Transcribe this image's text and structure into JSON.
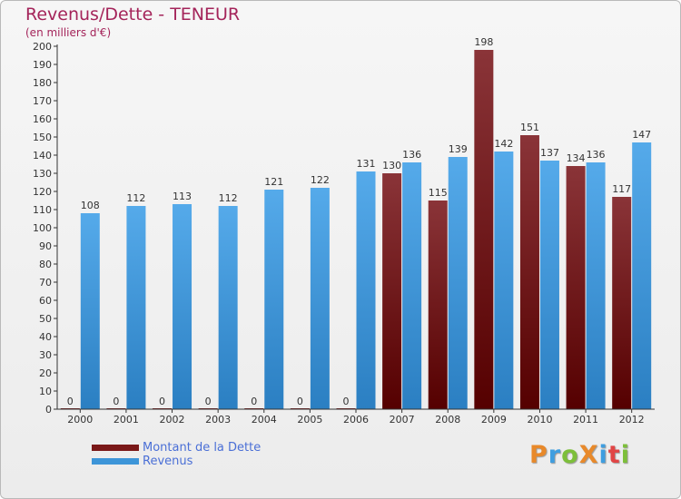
{
  "chart_data": {
    "type": "bar",
    "title": "Revenus/Dette - TENEUR",
    "subtitle": "(en milliers d'€)",
    "categories": [
      "2000",
      "2001",
      "2002",
      "2003",
      "2004",
      "2005",
      "2006",
      "2007",
      "2008",
      "2009",
      "2010",
      "2011",
      "2012"
    ],
    "series": [
      {
        "name": "Montant de la Dette",
        "color": "#7a1818",
        "values": [
          0,
          0,
          0,
          0,
          0,
          0,
          0,
          130,
          115,
          198,
          151,
          134,
          117
        ]
      },
      {
        "name": "Revenus",
        "color": "#3d95d8",
        "values": [
          108,
          112,
          113,
          112,
          121,
          122,
          131,
          136,
          139,
          142,
          137,
          136,
          147
        ]
      }
    ],
    "ylim": [
      0,
      200
    ],
    "ytick_step": 10,
    "grid": false,
    "legend_position": "bottom-left"
  },
  "brand": {
    "logo_text": "ProXiti",
    "letter_colors": [
      "#e8892a",
      "#3f9ee0",
      "#7dbf3a",
      "#e8892a",
      "#3f9ee0",
      "#e14545",
      "#7dbf3a"
    ]
  }
}
